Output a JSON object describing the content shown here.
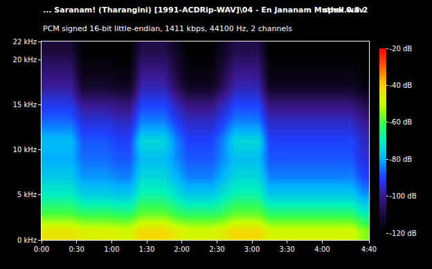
{
  "chart_data": {
    "type": "heatmap",
    "title": "... Saranam! (Tharangini) [1991-ACDRip-WAV]\\04 - En Jananam Muthal.wav",
    "subtitle": "PCM signed 16-bit little-endian, 1411 kbps, 44100 Hz, 2 channels",
    "annotations": [
      "spek 0.8.2"
    ],
    "x": [
      5,
      15,
      25,
      35,
      45,
      55,
      65,
      75,
      85,
      95,
      105,
      115,
      125,
      135,
      145,
      155,
      165,
      175,
      185,
      195,
      205,
      215,
      225,
      235,
      245,
      255,
      265,
      275
    ],
    "y": [
      1,
      3,
      5,
      7,
      9,
      11,
      13,
      15,
      17,
      19,
      21
    ],
    "z": [
      [
        -44,
        -44,
        -44,
        -47,
        -47,
        -47,
        -48,
        -48,
        -42,
        -42,
        -42,
        -46,
        -48,
        -48,
        -48,
        -46,
        -42,
        -42,
        -42,
        -48,
        -48,
        -48,
        -48,
        -48,
        -48,
        -48,
        -48,
        -55
      ],
      [
        -60,
        -60,
        -60,
        -63,
        -63,
        -63,
        -64,
        -64,
        -58,
        -58,
        -58,
        -62,
        -64,
        -64,
        -64,
        -62,
        -58,
        -58,
        -58,
        -64,
        -64,
        -64,
        -64,
        -64,
        -64,
        -64,
        -64,
        -70
      ],
      [
        -70,
        -70,
        -70,
        -75,
        -75,
        -75,
        -76,
        -76,
        -68,
        -68,
        -68,
        -72,
        -76,
        -76,
        -76,
        -72,
        -68,
        -68,
        -68,
        -76,
        -76,
        -76,
        -76,
        -76,
        -76,
        -76,
        -76,
        -82
      ],
      [
        -76,
        -76,
        -76,
        -82,
        -82,
        -82,
        -84,
        -84,
        -74,
        -74,
        -74,
        -79,
        -84,
        -84,
        -84,
        -79,
        -74,
        -74,
        -74,
        -84,
        -84,
        -84,
        -84,
        -84,
        -84,
        -84,
        -84,
        -90
      ],
      [
        -80,
        -80,
        -80,
        -86,
        -86,
        -86,
        -88,
        -88,
        -78,
        -78,
        -78,
        -83,
        -88,
        -88,
        -88,
        -83,
        -78,
        -78,
        -78,
        -88,
        -88,
        -88,
        -88,
        -88,
        -88,
        -88,
        -88,
        -94
      ],
      [
        -78,
        -78,
        -78,
        -88,
        -88,
        -88,
        -90,
        -90,
        -74,
        -74,
        -74,
        -84,
        -90,
        -90,
        -90,
        -84,
        -74,
        -74,
        -74,
        -90,
        -90,
        -90,
        -90,
        -90,
        -90,
        -90,
        -90,
        -96
      ],
      [
        -86,
        -86,
        -86,
        -93,
        -93,
        -93,
        -95,
        -95,
        -84,
        -84,
        -84,
        -90,
        -95,
        -95,
        -95,
        -90,
        -84,
        -84,
        -84,
        -95,
        -95,
        -95,
        -95,
        -95,
        -95,
        -95,
        -95,
        -100
      ],
      [
        -92,
        -92,
        -92,
        -100,
        -100,
        -100,
        -102,
        -102,
        -90,
        -90,
        -90,
        -96,
        -102,
        -102,
        -102,
        -96,
        -90,
        -90,
        -90,
        -102,
        -102,
        -102,
        -102,
        -102,
        -102,
        -102,
        -102,
        -108
      ],
      [
        -99,
        -99,
        -99,
        -112,
        -112,
        -112,
        -114,
        -114,
        -97,
        -97,
        -97,
        -106,
        -114,
        -114,
        -114,
        -106,
        -97,
        -97,
        -97,
        -114,
        -114,
        -114,
        -114,
        -114,
        -114,
        -114,
        -114,
        -118
      ],
      [
        -104,
        -104,
        -104,
        -117,
        -117,
        -117,
        -118,
        -118,
        -102,
        -102,
        -102,
        -110,
        -118,
        -118,
        -118,
        -110,
        -102,
        -102,
        -102,
        -118,
        -118,
        -118,
        -118,
        -118,
        -118,
        -118,
        -118,
        -120
      ],
      [
        -110,
        -110,
        -110,
        -120,
        -120,
        -120,
        -120,
        -120,
        -108,
        -108,
        -108,
        -114,
        -120,
        -120,
        -120,
        -114,
        -108,
        -108,
        -108,
        -120,
        -120,
        -120,
        -120,
        -120,
        -120,
        -120,
        -120,
        -120
      ]
    ],
    "xlim": [
      0,
      280
    ],
    "xticks": [
      {
        "value": 0,
        "label": "0:00"
      },
      {
        "value": 30,
        "label": "0:30"
      },
      {
        "value": 60,
        "label": "1:00"
      },
      {
        "value": 90,
        "label": "1:30"
      },
      {
        "value": 120,
        "label": "2:00"
      },
      {
        "value": 150,
        "label": "2:30"
      },
      {
        "value": 180,
        "label": "3:00"
      },
      {
        "value": 210,
        "label": "3:30"
      },
      {
        "value": 240,
        "label": "4:00"
      },
      {
        "value": 280,
        "label": "4:40"
      }
    ],
    "ylim": [
      0,
      22
    ],
    "yticks": [
      {
        "value": 0,
        "label": "0 kHz"
      },
      {
        "value": 5,
        "label": "5 kHz"
      },
      {
        "value": 10,
        "label": "10 kHz"
      },
      {
        "value": 15,
        "label": "15 kHz"
      },
      {
        "value": 20,
        "label": "20 kHz"
      },
      {
        "value": 22,
        "label": "22 kHz"
      }
    ],
    "colorbar": {
      "range": [
        -120,
        -20
      ],
      "ticks": [
        {
          "value": -20,
          "label": "-20 dB"
        },
        {
          "value": -40,
          "label": "-40 dB"
        },
        {
          "value": -60,
          "label": "-60 dB"
        },
        {
          "value": -80,
          "label": "-80 dB"
        },
        {
          "value": -100,
          "label": "-100 dB"
        },
        {
          "value": -120,
          "label": "-120 dB"
        }
      ]
    }
  }
}
